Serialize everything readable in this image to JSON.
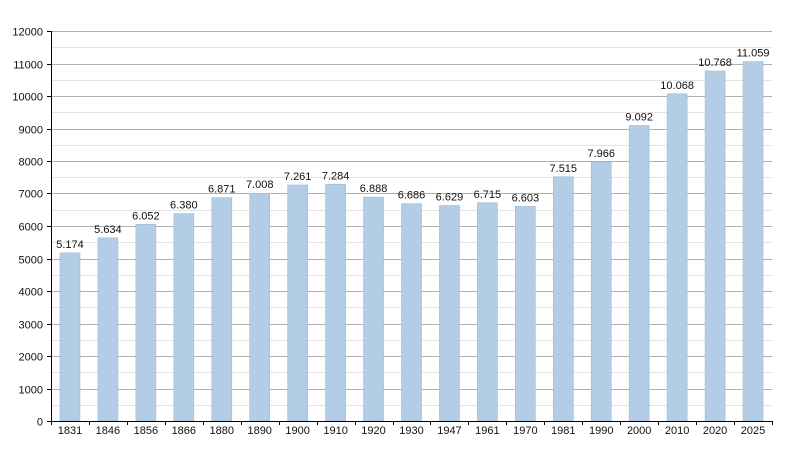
{
  "chart_data": {
    "type": "bar",
    "categories": [
      "1831",
      "1846",
      "1856",
      "1866",
      "1880",
      "1890",
      "1900",
      "1910",
      "1920",
      "1930",
      "1947",
      "1961",
      "1970",
      "1981",
      "1990",
      "2000",
      "2010",
      "2020",
      "2025"
    ],
    "values": [
      5174,
      5634,
      6052,
      6380,
      6871,
      7008,
      7261,
      7284,
      6888,
      6686,
      6629,
      6715,
      6603,
      7515,
      7966,
      9092,
      10068,
      10768,
      11059
    ],
    "value_labels": [
      "5.174",
      "5.634",
      "6.052",
      "6.380",
      "6.871",
      "7.008",
      "7.261",
      "7.284",
      "6.888",
      "6.686",
      "6.629",
      "6.715",
      "6.603",
      "7.515",
      "7.966",
      "9.092",
      "10.068",
      "10.768",
      "11.059"
    ],
    "y_ticks": [
      "0",
      "1000",
      "2000",
      "3000",
      "4000",
      "5000",
      "6000",
      "7000",
      "8000",
      "9000",
      "10000",
      "11000",
      "12000"
    ],
    "ylim": [
      0,
      12000
    ],
    "y_tick_step": 1000,
    "minor_grid_step": 500,
    "grid": true,
    "bar_color": "#b3cde6",
    "bar_edge_color": "#9dbad6",
    "major_grid_color": "#b0b0b0",
    "minor_grid_color": "#e3e3e3",
    "axis_color": "#000000"
  }
}
